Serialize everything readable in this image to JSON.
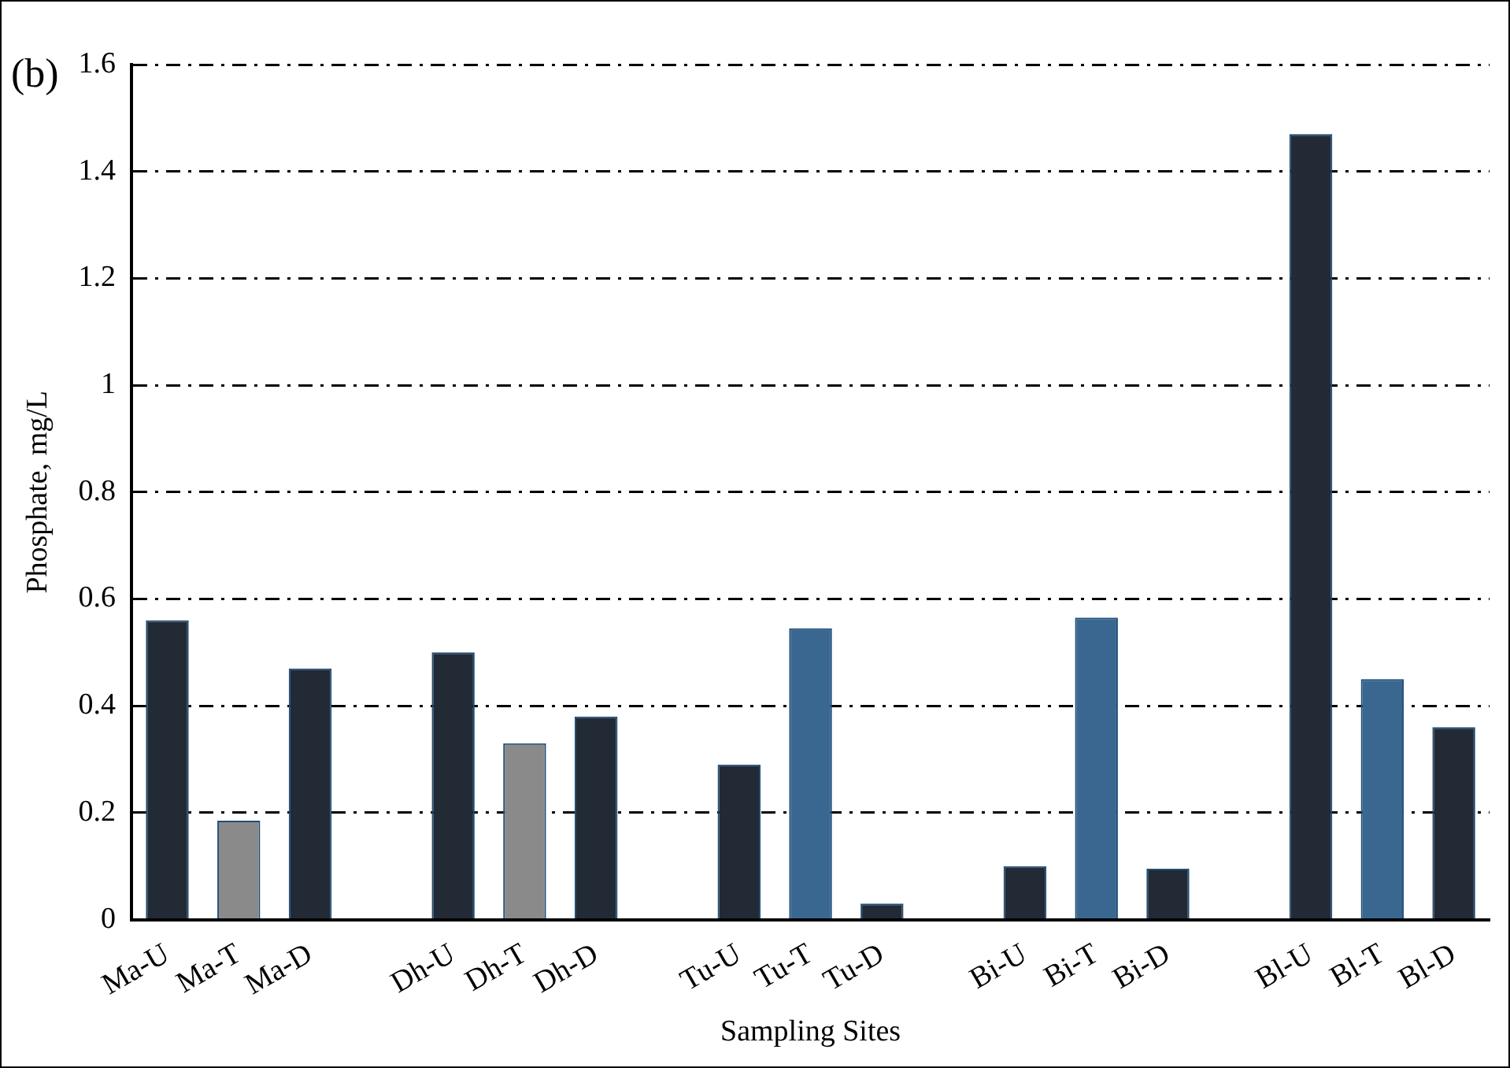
{
  "chart_data": {
    "type": "bar",
    "title": "(b)",
    "xlabel": "Sampling Sites",
    "ylabel": "Phosphate, mg/L",
    "categories": [
      "Ma-U",
      "Ma-T",
      "Ma-D",
      null,
      "Dh-U",
      "Dh-T",
      "Dh-D",
      null,
      "Tu-U",
      "Tu-T",
      "Tu-D",
      null,
      "Bi-U",
      "Bi-T",
      "Bi-D",
      null,
      "Bl-U",
      "Bl-T",
      "Bl-D"
    ],
    "values": [
      0.56,
      0.185,
      0.47,
      null,
      0.5,
      0.33,
      0.38,
      null,
      0.29,
      0.545,
      0.03,
      null,
      0.1,
      0.565,
      0.095,
      null,
      1.47,
      0.45,
      0.36
    ],
    "colors": [
      "#222a36",
      "#8a8a8a",
      "#222a36",
      null,
      "#222a36",
      "#8a8a8a",
      "#222a36",
      null,
      "#222a36",
      "#3a6790",
      "#222a36",
      null,
      "#222a36",
      "#3a6790",
      "#222a36",
      null,
      "#222a36",
      "#3a6790",
      "#222a36"
    ],
    "ylim": [
      0,
      1.6
    ],
    "yticks": [
      0,
      0.2,
      0.4,
      0.6,
      0.8,
      1,
      1.2,
      1.4,
      1.6
    ],
    "grid": "y",
    "legend": false,
    "line_style": "dashdot"
  }
}
